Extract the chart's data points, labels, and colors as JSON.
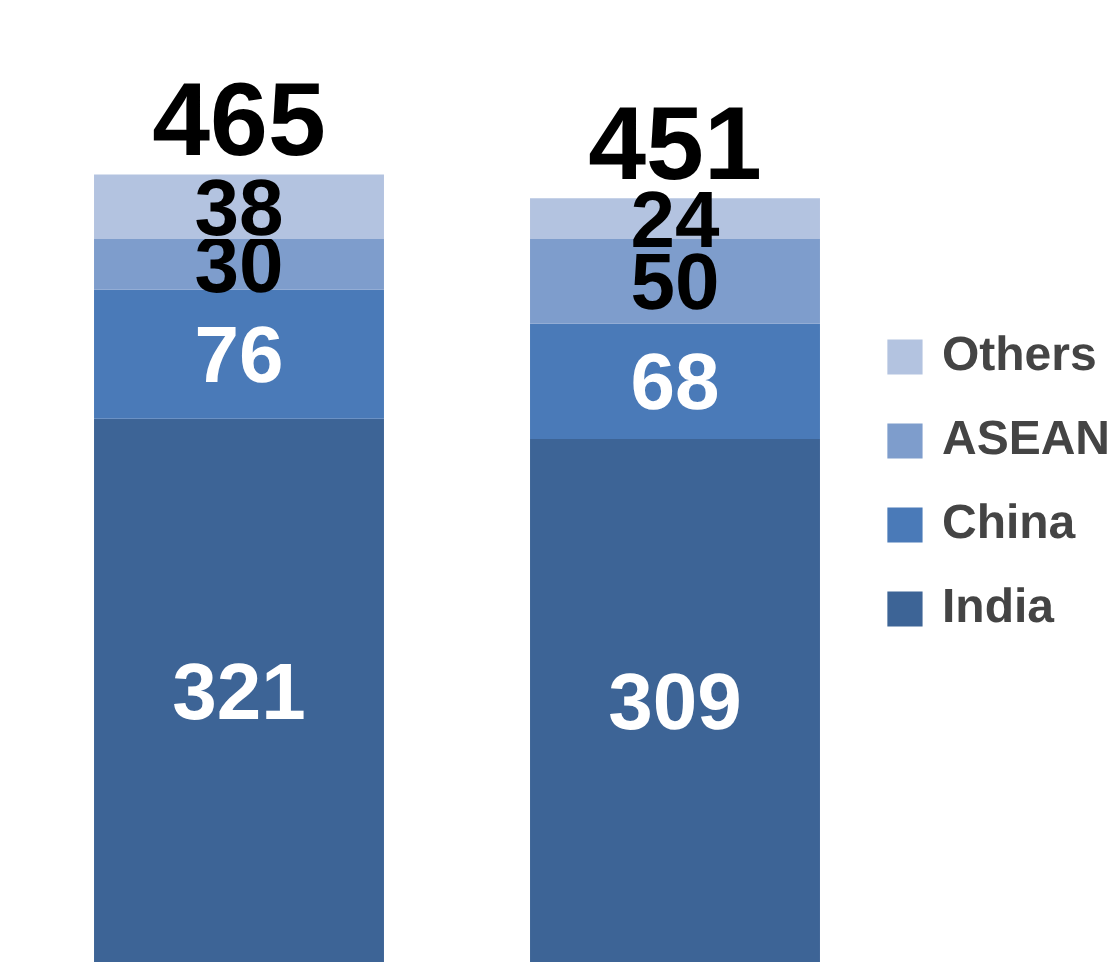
{
  "chart_data": {
    "type": "bar",
    "stacked": true,
    "categories": [
      null,
      null
    ],
    "data_labels": true,
    "totals": [
      "465",
      "451"
    ],
    "legend": "right",
    "series": [
      {
        "name": "India",
        "color": "#3d6496",
        "values": [
          321,
          309
        ]
      },
      {
        "name": "China",
        "color": "#4a7ab8",
        "values": [
          76,
          68
        ]
      },
      {
        "name": "ASEAN",
        "color": "#7e9dcc",
        "values": [
          30,
          50
        ]
      },
      {
        "name": "Others",
        "color": "#b3c3e0",
        "values": [
          38,
          24
        ]
      }
    ]
  }
}
